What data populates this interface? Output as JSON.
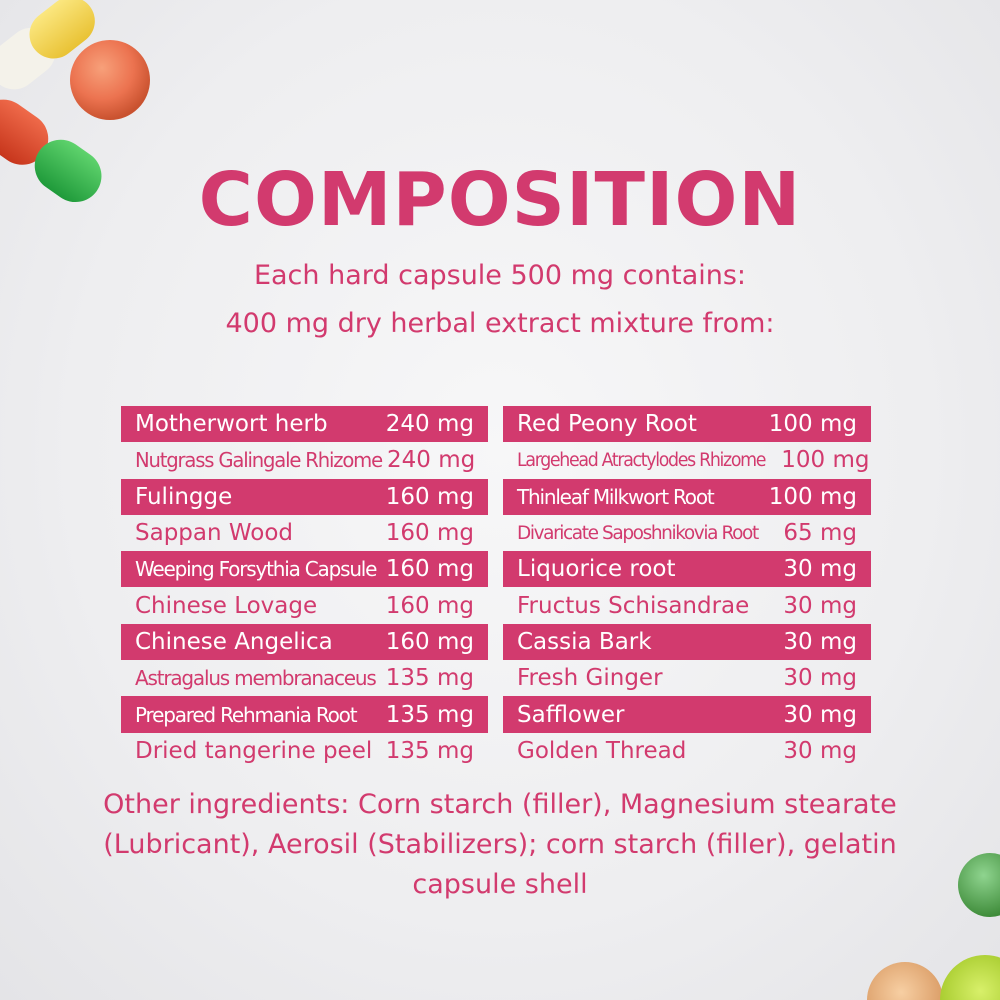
{
  "colors": {
    "accent": "#d23a6e",
    "band_text": "#ffffff",
    "text": "#d23a6e"
  },
  "title": "COMPOSITION",
  "subtitle_1": "Each hard capsule 500 mg contains:",
  "subtitle_2": "400 mg dry herbal extract mixture from:",
  "left_column": [
    {
      "name": "Motherwort herb",
      "amount": "240 mg",
      "highlight": true
    },
    {
      "name": "Nutgrass Galingale Rhizome",
      "amount": "240 mg",
      "highlight": false
    },
    {
      "name": "Fulingge",
      "amount": "160 mg",
      "highlight": true
    },
    {
      "name": "Sappan Wood",
      "amount": "160 mg",
      "highlight": false
    },
    {
      "name": "Weeping Forsythia Capsule",
      "amount": "160 mg",
      "highlight": true
    },
    {
      "name": "Chinese Lovage",
      "amount": "160 mg",
      "highlight": false
    },
    {
      "name": "Chinese Angelica",
      "amount": "160 mg",
      "highlight": true
    },
    {
      "name": "Astragalus membranaceus",
      "amount": "135 mg",
      "highlight": false
    },
    {
      "name": "Prepared Rehmania Root",
      "amount": "135 mg",
      "highlight": true
    },
    {
      "name": "Dried tangerine peel",
      "amount": "135 mg",
      "highlight": false
    }
  ],
  "right_column": [
    {
      "name": "Red Peony Root",
      "amount": "100 mg",
      "highlight": true
    },
    {
      "name": "Largehead Atractylodes Rhizome",
      "amount": "100 mg",
      "highlight": false
    },
    {
      "name": "Thinleaf Milkwort Root",
      "amount": "100 mg",
      "highlight": true
    },
    {
      "name": "Divaricate Saposhnikovia Root",
      "amount": "65 mg",
      "highlight": false
    },
    {
      "name": "Liquorice root",
      "amount": "30 mg",
      "highlight": true
    },
    {
      "name": "Fructus Schisandrae",
      "amount": "30 mg",
      "highlight": false
    },
    {
      "name": "Cassia Bark",
      "amount": "30 mg",
      "highlight": true
    },
    {
      "name": "Fresh Ginger",
      "amount": "30 mg",
      "highlight": false
    },
    {
      "name": "Safflower",
      "amount": "30 mg",
      "highlight": true
    },
    {
      "name": "Golden Thread",
      "amount": "30 mg",
      "highlight": false
    }
  ],
  "other_ingredients": "Other ingredients: Corn starch (filler), Magnesium stearate (Lubricant), Aerosil (Stabilizers); corn starch (filler), gelatin capsule shell"
}
